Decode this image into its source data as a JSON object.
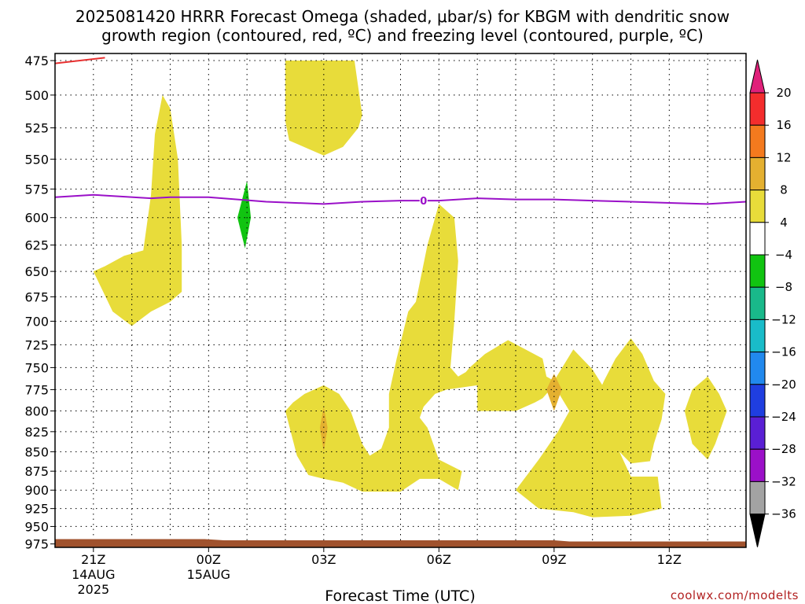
{
  "title_line1": "2025081420 HRRR Forecast Omega (shaded, μbar/s) for KBGM with dendritic snow",
  "title_line2": "growth region (contoured, red, ºC) and freezing level (contoured, purple, ºC)",
  "credit": "coolwx.com/modelts",
  "chart_data": {
    "type": "heatmap",
    "xlabel": "Forecast Time (UTC)",
    "x_ticks": [
      {
        "label": "21Z",
        "sub1": "14AUG",
        "sub2": "2025"
      },
      {
        "label": "00Z",
        "sub1": "15AUG",
        "sub2": ""
      },
      {
        "label": "03Z",
        "sub1": "",
        "sub2": ""
      },
      {
        "label": "06Z",
        "sub1": "",
        "sub2": ""
      },
      {
        "label": "09Z",
        "sub1": "",
        "sub2": ""
      },
      {
        "label": "12Z",
        "sub1": "",
        "sub2": ""
      }
    ],
    "x_ticks_hours": [
      21,
      24,
      27,
      30,
      33,
      36
    ],
    "xlim_hours": [
      20,
      38
    ],
    "y_ticks_hpa": [
      475,
      500,
      525,
      550,
      575,
      600,
      625,
      650,
      675,
      700,
      725,
      750,
      775,
      800,
      825,
      850,
      875,
      900,
      925,
      950,
      975
    ],
    "ylim_hpa": [
      470,
      980
    ],
    "y_scale": "log",
    "grid": true,
    "colorbar": {
      "levels": [
        "20",
        "16",
        "12",
        "8",
        "4",
        "−4",
        "−8",
        "−12",
        "−16",
        "−20",
        "−24",
        "−28",
        "−32",
        "−36"
      ],
      "colors": [
        "#f42d2d",
        "#f47a1e",
        "#e4b030",
        "#e8dc3a",
        "#ffffff",
        "#11c411",
        "#19b98a",
        "#19bcc9",
        "#2189ee",
        "#1f3ee0",
        "#5a1fd4",
        "#9b10c8",
        "#a3a3a3"
      ],
      "top_arrow": "#e0207a",
      "bottom_arrow": "#000000"
    },
    "freezing_level_label": "0",
    "freezing_level_hpa": [
      [
        20.0,
        582
      ],
      [
        21.0,
        580
      ],
      [
        22.5,
        583
      ],
      [
        23.0,
        582
      ],
      [
        24.0,
        582
      ],
      [
        25.5,
        586
      ],
      [
        27.0,
        588
      ],
      [
        28.0,
        586
      ],
      [
        29.0,
        585
      ],
      [
        30.0,
        585
      ],
      [
        31.0,
        583
      ],
      [
        32.0,
        584
      ],
      [
        33.0,
        584
      ],
      [
        34.0,
        585
      ],
      [
        35.0,
        586
      ],
      [
        36.0,
        587
      ],
      [
        37.0,
        588
      ],
      [
        38.0,
        586
      ]
    ],
    "dgz_contour_hpa": [
      [
        20.0,
        477
      ],
      [
        21.3,
        473
      ]
    ],
    "omega_regions": [
      {
        "value": "4 to 8",
        "color": "#e8dc3a",
        "points": [
          [
            21.0,
            650
          ],
          [
            21.5,
            690
          ],
          [
            22.0,
            705
          ],
          [
            22.5,
            690
          ],
          [
            23.0,
            680
          ],
          [
            23.3,
            670
          ],
          [
            23.3,
            625
          ],
          [
            23.2,
            550
          ],
          [
            23.0,
            510
          ],
          [
            22.8,
            500
          ],
          [
            22.6,
            530
          ],
          [
            22.5,
            580
          ],
          [
            22.3,
            630
          ],
          [
            21.8,
            635
          ],
          [
            21.3,
            645
          ]
        ]
      },
      {
        "value": "4 to 8",
        "color": "#e8dc3a",
        "points": [
          [
            26.0,
            475
          ],
          [
            26.0,
            520
          ],
          [
            26.1,
            535
          ],
          [
            27.0,
            547
          ],
          [
            27.5,
            540
          ],
          [
            27.9,
            525
          ],
          [
            28.0,
            515
          ],
          [
            27.8,
            475
          ]
        ]
      },
      {
        "value": "4 to 8",
        "color": "#e8dc3a",
        "points": [
          [
            26.0,
            800
          ],
          [
            26.3,
            855
          ],
          [
            26.6,
            880
          ],
          [
            27.0,
            885
          ],
          [
            27.5,
            890
          ],
          [
            28.0,
            902
          ],
          [
            29.0,
            902
          ],
          [
            29.5,
            885
          ],
          [
            30.0,
            885
          ],
          [
            30.5,
            900
          ],
          [
            30.6,
            875
          ],
          [
            30.0,
            860
          ],
          [
            29.7,
            820
          ],
          [
            29.5,
            808
          ],
          [
            29.6,
            795
          ],
          [
            29.9,
            780
          ],
          [
            30.2,
            775
          ],
          [
            31.0,
            770
          ],
          [
            31.0,
            800
          ],
          [
            32.0,
            800
          ],
          [
            32.5,
            790
          ],
          [
            32.7,
            785
          ],
          [
            33.0,
            770
          ],
          [
            33.2,
            785
          ],
          [
            33.4,
            800
          ],
          [
            33.1,
            825
          ],
          [
            32.6,
            860
          ],
          [
            32.0,
            900
          ],
          [
            32.6,
            925
          ],
          [
            33.5,
            930
          ],
          [
            34.0,
            937
          ],
          [
            35.0,
            935
          ],
          [
            35.8,
            925
          ],
          [
            35.7,
            882
          ],
          [
            35.0,
            882
          ],
          [
            34.7,
            850
          ],
          [
            34.6,
            810
          ],
          [
            34.4,
            780
          ],
          [
            34.0,
            752
          ],
          [
            33.5,
            730
          ],
          [
            33.0,
            765
          ],
          [
            32.8,
            760
          ],
          [
            32.7,
            740
          ],
          [
            31.8,
            720
          ],
          [
            31.2,
            735
          ],
          [
            30.8,
            750
          ],
          [
            30.7,
            755
          ],
          [
            30.5,
            760
          ],
          [
            30.3,
            750
          ],
          [
            30.4,
            700
          ],
          [
            30.5,
            640
          ],
          [
            30.4,
            600
          ],
          [
            30.0,
            588
          ],
          [
            29.7,
            625
          ],
          [
            29.4,
            680
          ],
          [
            29.2,
            690
          ],
          [
            28.9,
            740
          ],
          [
            28.7,
            780
          ],
          [
            28.7,
            820
          ],
          [
            28.5,
            846
          ],
          [
            28.2,
            855
          ],
          [
            28.0,
            840
          ],
          [
            27.7,
            800
          ],
          [
            27.4,
            780
          ],
          [
            27.0,
            770
          ],
          [
            26.5,
            780
          ],
          [
            26.2,
            790
          ]
        ]
      },
      {
        "value": "4 to 8",
        "color": "#e8dc3a",
        "points": [
          [
            34.2,
            775
          ],
          [
            34.4,
            820
          ],
          [
            34.7,
            850
          ],
          [
            35.0,
            865
          ],
          [
            35.5,
            862
          ],
          [
            35.6,
            840
          ],
          [
            35.8,
            810
          ],
          [
            35.9,
            780
          ],
          [
            35.6,
            765
          ],
          [
            35.3,
            735
          ],
          [
            35.0,
            718
          ],
          [
            34.6,
            740
          ],
          [
            34.3,
            765
          ]
        ]
      },
      {
        "value": "4 to 8",
        "color": "#e8dc3a",
        "points": [
          [
            36.4,
            800
          ],
          [
            36.6,
            840
          ],
          [
            37.0,
            860
          ],
          [
            37.2,
            840
          ],
          [
            37.5,
            800
          ],
          [
            37.3,
            780
          ],
          [
            37.0,
            760
          ],
          [
            36.6,
            775
          ]
        ]
      },
      {
        "value": "8 to 12",
        "color": "#e4b030",
        "points": [
          [
            26.9,
            820
          ],
          [
            27.0,
            795
          ],
          [
            27.1,
            820
          ],
          [
            27.0,
            850
          ]
        ]
      },
      {
        "value": "8 to 12",
        "color": "#e4b030",
        "points": [
          [
            32.8,
            775
          ],
          [
            33.0,
            757
          ],
          [
            33.2,
            775
          ],
          [
            33.0,
            800
          ]
        ]
      },
      {
        "value": "-8 to -4",
        "color": "#11c411",
        "points": [
          [
            24.75,
            600
          ],
          [
            25.0,
            568
          ],
          [
            25.1,
            600
          ],
          [
            24.95,
            628
          ]
        ]
      }
    ],
    "surface_terrain_color": "#a0522d"
  }
}
